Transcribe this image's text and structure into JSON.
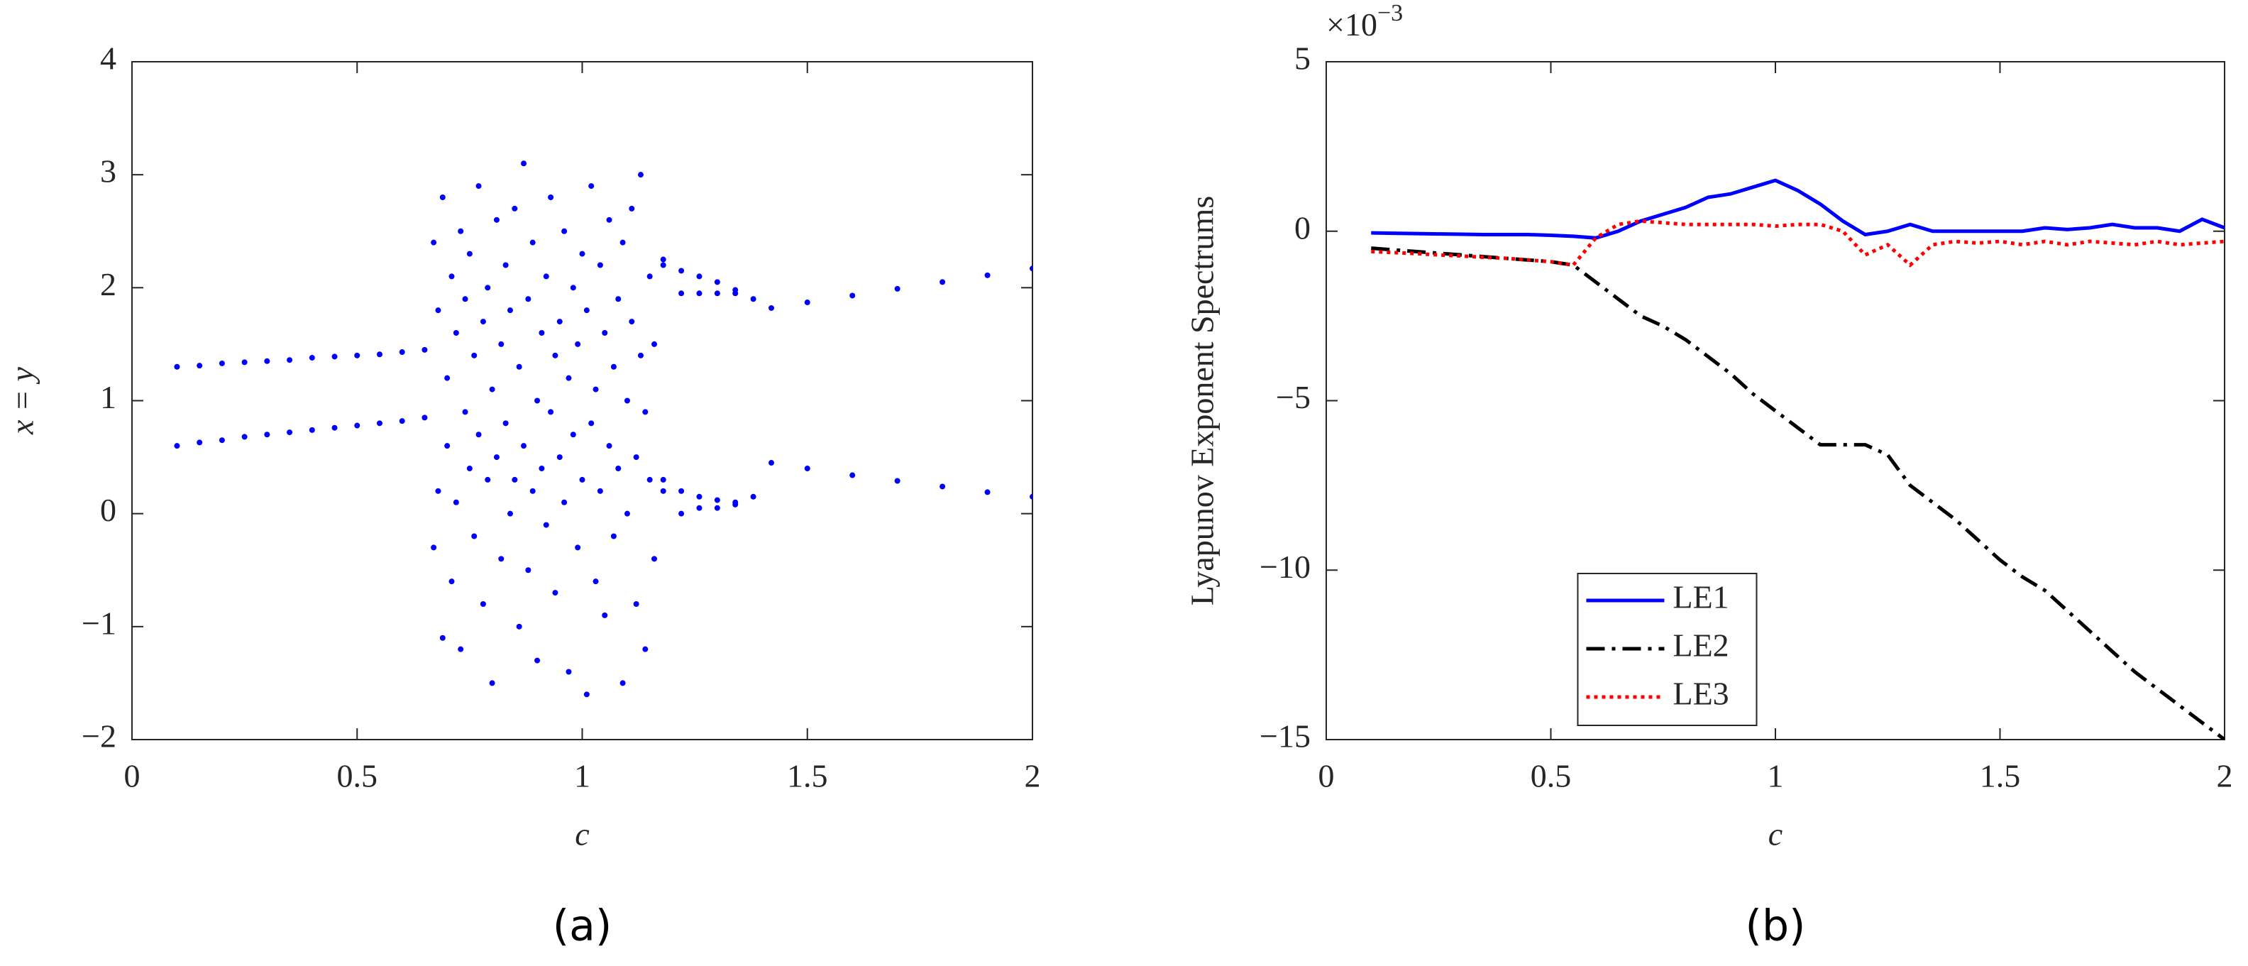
{
  "chart_data": [
    {
      "type": "scatter",
      "caption": "(a)",
      "xlabel": "c",
      "ylabel": "x = y",
      "color": "#0000ff",
      "xlim": [
        0,
        2
      ],
      "xticks": [
        0,
        0.5,
        1,
        1.5,
        2
      ],
      "ylim": [
        -2,
        4
      ],
      "yticks": [
        {
          "value": -2,
          "label": "−2"
        },
        {
          "value": -1,
          "label": "−1"
        },
        0,
        1,
        2,
        3,
        4
      ],
      "x": [
        0.1,
        0.15,
        0.2,
        0.25,
        0.3,
        0.35,
        0.4,
        0.45,
        0.5,
        0.55,
        0.6,
        0.65,
        0.1,
        0.15,
        0.2,
        0.25,
        0.3,
        0.35,
        0.4,
        0.45,
        0.5,
        0.55,
        0.6,
        0.65,
        0.67,
        0.67,
        0.68,
        0.68,
        0.69,
        0.69,
        0.7,
        0.7,
        0.71,
        0.71,
        0.72,
        0.72,
        0.73,
        0.73,
        0.74,
        0.74,
        0.75,
        0.75,
        0.76,
        0.76,
        0.77,
        0.77,
        0.78,
        0.78,
        0.79,
        0.79,
        0.8,
        0.8,
        0.81,
        0.81,
        0.82,
        0.82,
        0.83,
        0.83,
        0.84,
        0.84,
        0.85,
        0.85,
        0.86,
        0.86,
        0.87,
        0.87,
        0.88,
        0.88,
        0.89,
        0.89,
        0.9,
        0.9,
        0.91,
        0.91,
        0.92,
        0.92,
        0.93,
        0.93,
        0.94,
        0.94,
        0.95,
        0.95,
        0.96,
        0.96,
        0.97,
        0.97,
        0.98,
        0.98,
        0.99,
        0.99,
        1.0,
        1.0,
        1.01,
        1.01,
        1.02,
        1.02,
        1.03,
        1.03,
        1.04,
        1.04,
        1.05,
        1.05,
        1.06,
        1.06,
        1.07,
        1.07,
        1.08,
        1.08,
        1.09,
        1.09,
        1.1,
        1.1,
        1.11,
        1.11,
        1.12,
        1.12,
        1.13,
        1.13,
        1.14,
        1.14,
        1.15,
        1.15,
        1.16,
        1.16,
        1.18,
        1.18,
        1.18,
        1.18,
        1.22,
        1.22,
        1.22,
        1.22,
        1.26,
        1.26,
        1.26,
        1.26,
        1.3,
        1.3,
        1.3,
        1.3,
        1.34,
        1.34,
        1.34,
        1.34,
        1.38,
        1.38,
        1.42,
        1.42,
        1.5,
        1.5,
        1.6,
        1.6,
        1.7,
        1.7,
        1.8,
        1.8,
        1.9,
        1.9,
        2.0,
        2.0
      ],
      "y": [
        1.3,
        1.31,
        1.33,
        1.34,
        1.35,
        1.36,
        1.38,
        1.39,
        1.4,
        1.41,
        1.43,
        1.45,
        0.6,
        0.63,
        0.65,
        0.68,
        0.7,
        0.72,
        0.74,
        0.76,
        0.78,
        0.8,
        0.82,
        0.85,
        2.4,
        -0.3,
        1.8,
        0.2,
        -1.1,
        2.8,
        1.2,
        0.6,
        2.1,
        -0.6,
        1.6,
        0.1,
        2.5,
        -1.2,
        0.9,
        1.9,
        0.4,
        2.3,
        -0.2,
        1.4,
        2.9,
        0.7,
        1.7,
        -0.8,
        0.3,
        2.0,
        1.1,
        -1.5,
        2.6,
        0.5,
        1.5,
        -0.4,
        2.2,
        0.8,
        0.0,
        1.8,
        2.7,
        0.3,
        -1.0,
        1.3,
        3.1,
        0.6,
        1.9,
        -0.5,
        0.2,
        2.4,
        1.0,
        -1.3,
        1.6,
        0.4,
        2.1,
        -0.1,
        0.9,
        2.8,
        1.4,
        -0.7,
        0.5,
        1.7,
        2.5,
        0.1,
        -1.4,
        1.2,
        2.0,
        0.7,
        -0.3,
        1.5,
        2.3,
        0.3,
        -1.6,
        1.8,
        0.8,
        2.9,
        1.1,
        -0.6,
        2.2,
        0.2,
        1.6,
        -0.9,
        0.6,
        2.6,
        1.3,
        -0.2,
        1.9,
        0.4,
        -1.5,
        2.4,
        1.0,
        0.0,
        1.7,
        2.7,
        0.5,
        -0.8,
        1.4,
        3.0,
        0.9,
        -1.2,
        2.1,
        0.3,
        1.5,
        -0.4,
        2.25,
        2.2,
        0.3,
        0.2,
        2.15,
        1.95,
        0.2,
        0.0,
        2.1,
        1.95,
        0.15,
        0.05,
        2.05,
        1.95,
        0.12,
        0.05,
        1.98,
        1.95,
        0.1,
        0.08,
        1.9,
        0.15,
        1.82,
        0.45,
        1.87,
        0.4,
        1.93,
        0.34,
        1.99,
        0.29,
        2.05,
        0.24,
        2.11,
        0.19,
        2.17,
        0.15
      ]
    },
    {
      "type": "line",
      "caption": "(b)",
      "xlabel": "c",
      "ylabel": "Lyapunov Exponent Spectrums",
      "multiplier": "×10",
      "multiplier_exponent": "−3",
      "legend": "lower left",
      "xlim": [
        0,
        2
      ],
      "xticks": [
        0,
        0.5,
        1,
        1.5,
        2
      ],
      "ylim": [
        -15,
        5
      ],
      "yticks": [
        {
          "value": -15,
          "label": "−15"
        },
        {
          "value": -10,
          "label": "−10"
        },
        {
          "value": -5,
          "label": "−5"
        },
        0,
        5
      ],
      "x": [
        0.1,
        0.15,
        0.2,
        0.25,
        0.3,
        0.35,
        0.4,
        0.45,
        0.5,
        0.55,
        0.6,
        0.65,
        0.7,
        0.75,
        0.8,
        0.85,
        0.9,
        0.95,
        1.0,
        1.05,
        1.1,
        1.15,
        1.2,
        1.25,
        1.3,
        1.35,
        1.4,
        1.45,
        1.5,
        1.55,
        1.6,
        1.65,
        1.7,
        1.75,
        1.8,
        1.85,
        1.9,
        1.95,
        2.0
      ],
      "series": [
        {
          "name": "LE1",
          "color": "#0000ff",
          "style": "solid",
          "values": [
            -0.05,
            -0.06,
            -0.07,
            -0.08,
            -0.09,
            -0.1,
            -0.1,
            -0.1,
            -0.12,
            -0.15,
            -0.2,
            0.0,
            0.3,
            0.5,
            0.7,
            1.0,
            1.1,
            1.3,
            1.5,
            1.2,
            0.8,
            0.3,
            -0.1,
            0.0,
            0.2,
            0.0,
            0.0,
            0.0,
            0.0,
            0.0,
            0.1,
            0.05,
            0.1,
            0.2,
            0.1,
            0.1,
            0.0,
            0.35,
            0.1
          ]
        },
        {
          "name": "LE2",
          "color": "#000000",
          "style": "dashdot",
          "values": [
            -0.5,
            -0.55,
            -0.6,
            -0.65,
            -0.7,
            -0.75,
            -0.8,
            -0.85,
            -0.9,
            -1.0,
            -1.5,
            -2.0,
            -2.5,
            -2.8,
            -3.2,
            -3.7,
            -4.2,
            -4.8,
            -5.3,
            -5.8,
            -6.3,
            -6.3,
            -6.3,
            -6.6,
            -7.5,
            -8.0,
            -8.5,
            -9.1,
            -9.7,
            -10.2,
            -10.6,
            -11.2,
            -11.8,
            -12.4,
            -13.0,
            -13.5,
            -14.0,
            -14.5,
            -15.0
          ]
        },
        {
          "name": "LE3",
          "color": "#ff0000",
          "style": "dotted",
          "values": [
            -0.6,
            -0.63,
            -0.66,
            -0.7,
            -0.73,
            -0.77,
            -0.8,
            -0.85,
            -0.9,
            -1.0,
            -0.2,
            0.2,
            0.3,
            0.25,
            0.2,
            0.2,
            0.2,
            0.2,
            0.15,
            0.2,
            0.2,
            0.0,
            -0.7,
            -0.4,
            -1.0,
            -0.4,
            -0.3,
            -0.35,
            -0.3,
            -0.4,
            -0.3,
            -0.4,
            -0.3,
            -0.35,
            -0.4,
            -0.3,
            -0.4,
            -0.35,
            -0.3
          ]
        }
      ]
    }
  ]
}
